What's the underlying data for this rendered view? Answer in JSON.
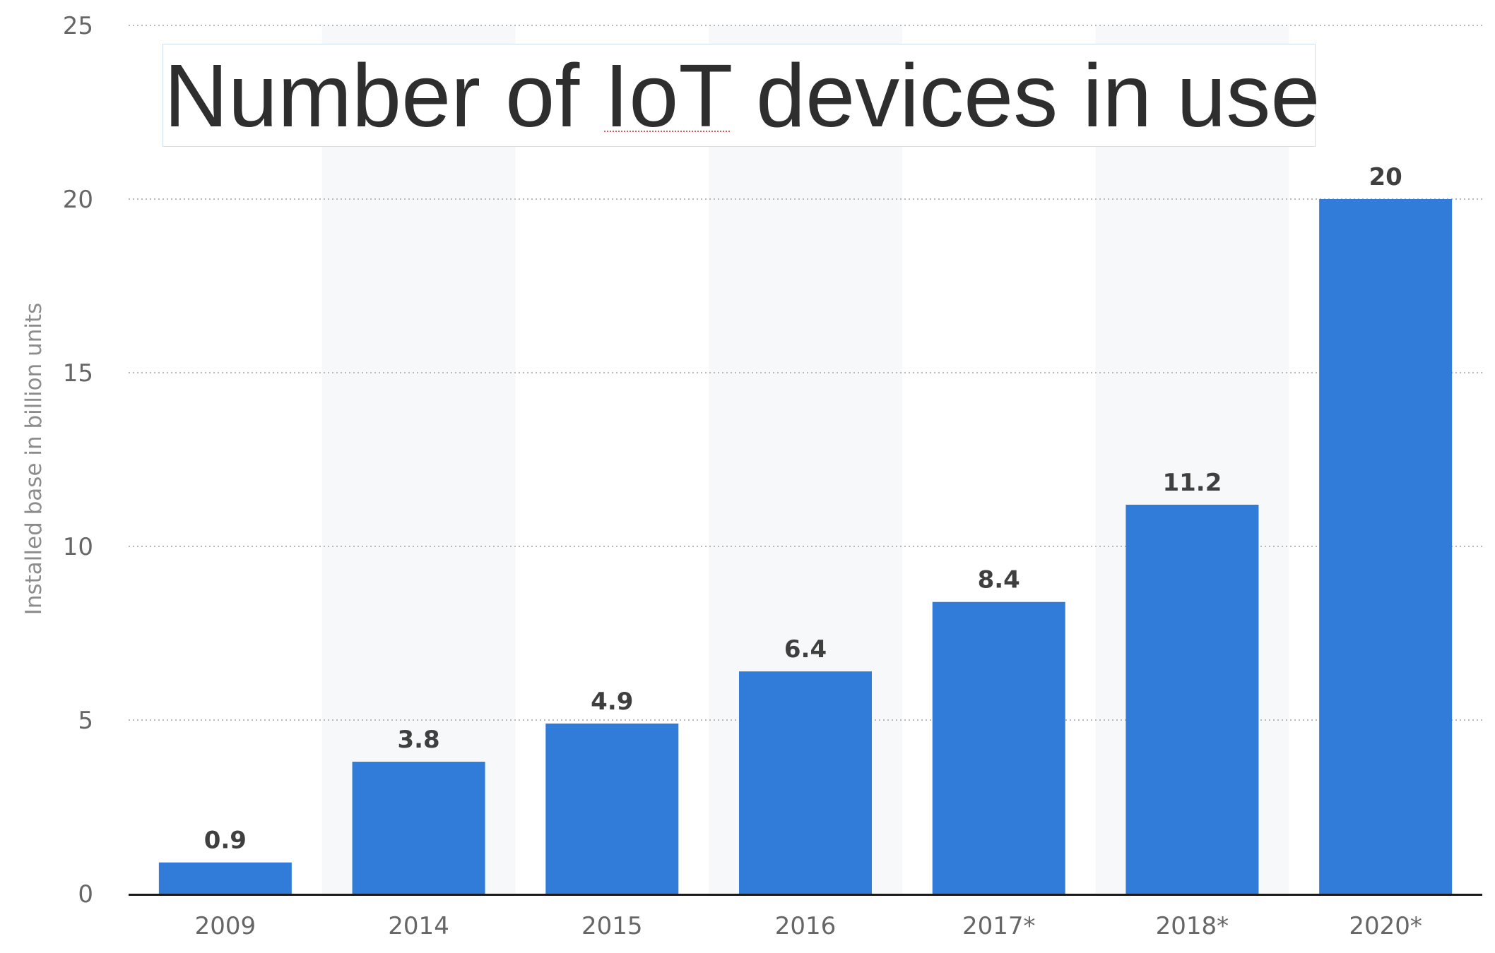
{
  "title": {
    "before": "Number of ",
    "highlight": "IoT",
    "after": " devices in use"
  },
  "chart_data": {
    "type": "bar",
    "title": "Number of IoT devices in use",
    "categories": [
      "2009",
      "2014",
      "2015",
      "2016",
      "2017*",
      "2018*",
      "2020*"
    ],
    "values": [
      0.9,
      3.8,
      4.9,
      6.4,
      8.4,
      11.2,
      20
    ],
    "value_labels": [
      "0.9",
      "3.8",
      "4.9",
      "6.4",
      "8.4",
      "11.2",
      "20"
    ],
    "xlabel": "",
    "ylabel": "Installed base in billion units",
    "ylim": [
      0,
      25
    ],
    "yticks": [
      0,
      5,
      10,
      15,
      20,
      25
    ],
    "ytick_labels": [
      "0",
      "5",
      "10",
      "15",
      "20",
      "25"
    ],
    "grid": true,
    "colors": {
      "bar": "#317cd8",
      "band": "#f7f8f9",
      "grid": "#b9b9b9",
      "axis": "#1a1a1a"
    }
  }
}
